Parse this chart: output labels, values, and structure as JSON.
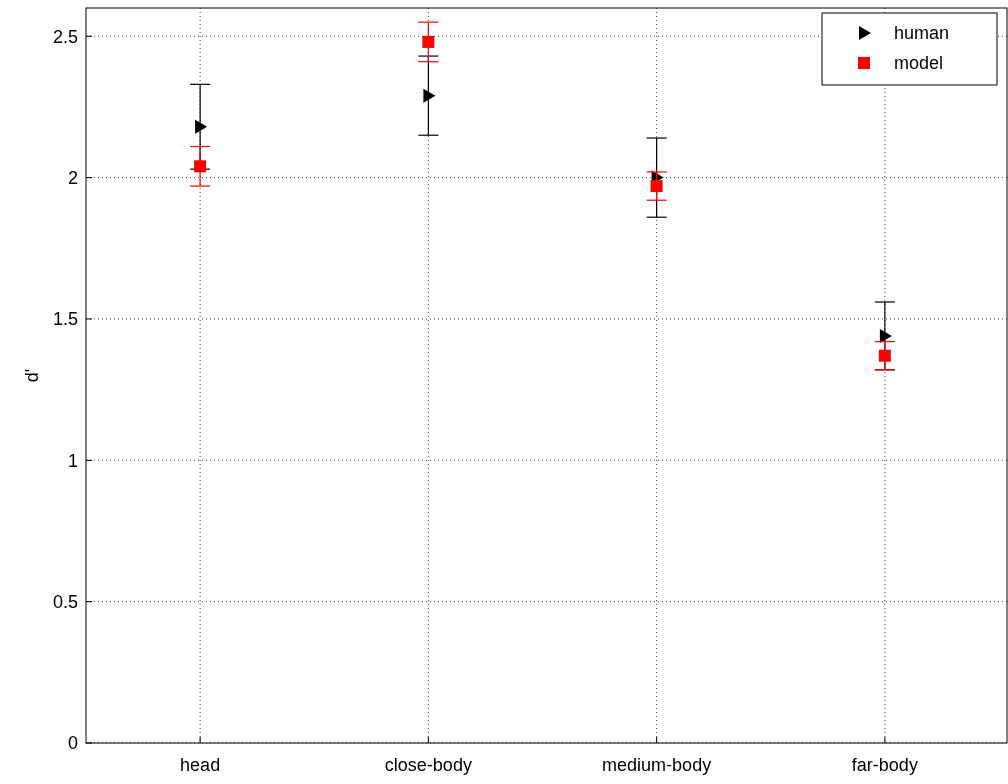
{
  "chart_data": {
    "type": "scatter",
    "ylabel": "d'",
    "categories": [
      "head",
      "close-body",
      "medium-body",
      "far-body"
    ],
    "series": [
      {
        "name": "human",
        "color": "#000000",
        "marker": "triangle",
        "values": [
          2.18,
          2.29,
          2.0,
          1.44
        ],
        "errors": [
          0.15,
          0.14,
          0.14,
          0.12
        ]
      },
      {
        "name": "model",
        "color": "#ff0000",
        "marker": "square",
        "values": [
          2.04,
          2.48,
          1.97,
          1.37
        ],
        "errors": [
          0.07,
          0.07,
          0.05,
          0.05
        ]
      }
    ],
    "ylim": [
      0,
      2.6
    ],
    "yticks": [
      0,
      0.5,
      1,
      1.5,
      2,
      2.5
    ],
    "grid": true,
    "legend": "top right"
  }
}
